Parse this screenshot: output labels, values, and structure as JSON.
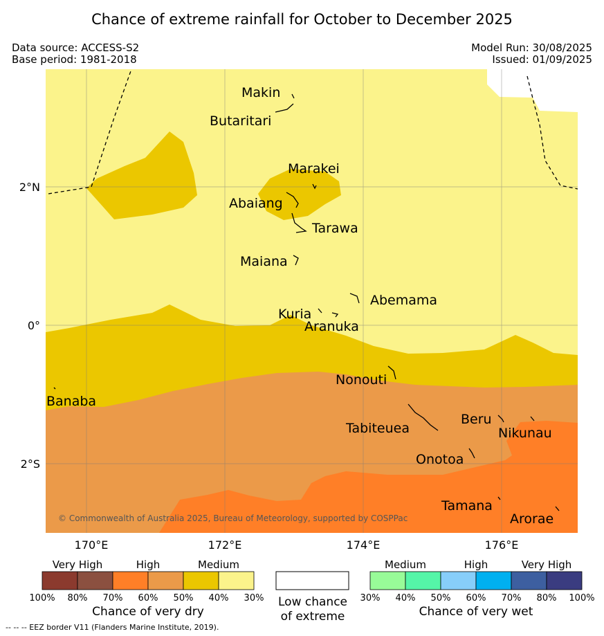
{
  "title": "Chance of extreme rainfall for October to December 2025",
  "header": {
    "data_source": "Data source: ACCESS-S2",
    "base_period": "Base period: 1981-2018",
    "model_run": "Model Run: 30/08/2025",
    "issued": "Issued: 01/09/2025"
  },
  "map": {
    "longitude_ticks": [
      "170°E",
      "172°E",
      "174°E",
      "176°E"
    ],
    "latitude_ticks": [
      "2°N",
      "0°",
      "2°S"
    ],
    "places": [
      "Makin",
      "Butaritari",
      "Marakei",
      "Abaiang",
      "Tarawa",
      "Maiana",
      "Abemama",
      "Kuria",
      "Aranuka",
      "Nonouti",
      "Banaba",
      "Tabiteuea",
      "Beru",
      "Nikunau",
      "Onotoa",
      "Tamana",
      "Arorae"
    ],
    "copyright": "© Commonwealth of Australia 2025, Bureau of Meteorology, supported by COSPPac",
    "colors": {
      "medium_dry": "#fbf38b",
      "high_dry_50": "#ebc700",
      "high_dry_60": "#eb9a49",
      "high_dry_70": "#ff7f27"
    }
  },
  "legend_dry": {
    "groups": [
      "Very High",
      "High",
      "Medium"
    ],
    "ticks": [
      "100%",
      "80%",
      "70%",
      "60%",
      "50%",
      "40%",
      "30%"
    ],
    "colors": [
      "#8b3a2e",
      "#8b5040",
      "#ff7f27",
      "#eb9a49",
      "#ebc700",
      "#fbf38b"
    ],
    "title": "Chance of very dry"
  },
  "legend_low": {
    "line1": "Low chance",
    "line2": "of extreme"
  },
  "legend_wet": {
    "groups": [
      "Medium",
      "High",
      "Very High"
    ],
    "ticks": [
      "30%",
      "40%",
      "50%",
      "60%",
      "70%",
      "80%",
      "100%"
    ],
    "colors": [
      "#98fb98",
      "#55f5a8",
      "#87cefa",
      "#00b0f0",
      "#3d5fa0",
      "#3a3c80"
    ],
    "title": "Chance of very wet"
  },
  "footnote": "--  --  -- EEZ border V11 (Flanders Marine Institute, 2019)."
}
